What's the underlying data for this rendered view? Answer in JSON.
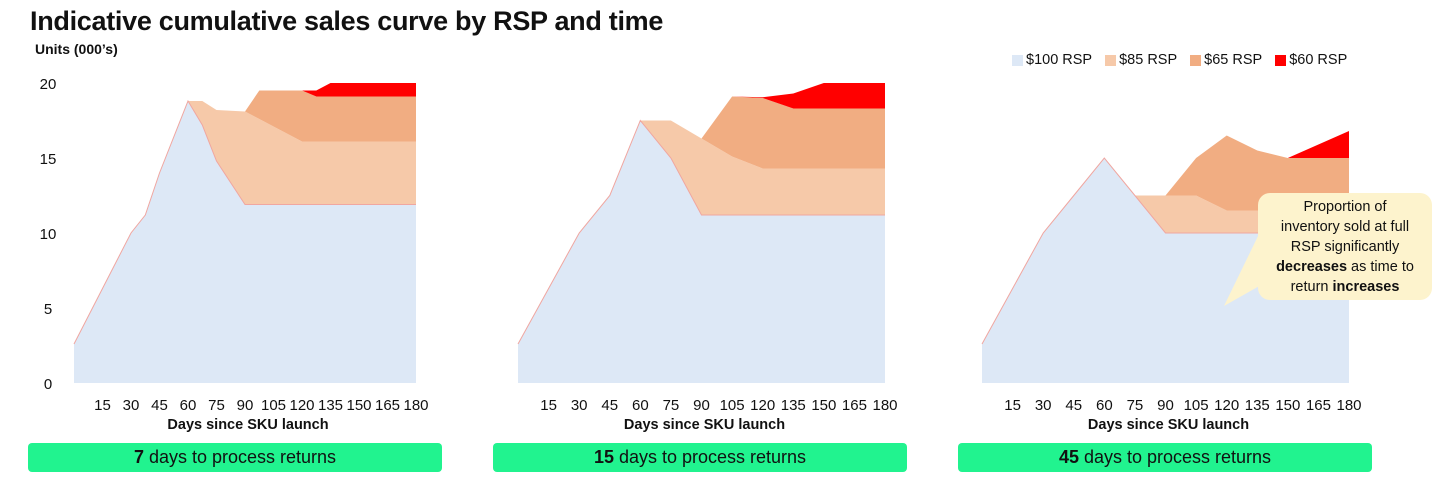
{
  "title": "Indicative cumulative sales curve by RSP and time",
  "y_axis_label": "Units (000’s)",
  "legend": [
    {
      "label": "$100 RSP",
      "color": "#dde8f6"
    },
    {
      "label": "$85 RSP",
      "color": "#f6c9a9"
    },
    {
      "label": "$65 RSP",
      "color": "#f1ad82"
    },
    {
      "label": "$60 RSP",
      "color": "#ff0000"
    }
  ],
  "panels": [
    {
      "days_value": "7",
      "days_text": "days to process returns"
    },
    {
      "days_value": "15",
      "days_text": "days to process returns"
    },
    {
      "days_value": "45",
      "days_text": "days to process returns"
    }
  ],
  "callout": {
    "line1": "Proportion of",
    "line2": "inventory sold at full",
    "line3": "RSP significantly",
    "line4_bold": "decreases",
    "line4_rest": " as time to",
    "line5_pre": "return ",
    "line5_bold": "increases"
  },
  "chart_data": [
    {
      "type": "area",
      "stacked": true,
      "xlabel": "Days since SKU launch",
      "ylabel": "Units (000’s)",
      "x": [
        0,
        15,
        30,
        37.5,
        45,
        60,
        67.5,
        75,
        90,
        97.5,
        105,
        120,
        127.5,
        135,
        150,
        165,
        180
      ],
      "x_ticks": [
        15,
        30,
        45,
        60,
        75,
        90,
        105,
        120,
        135,
        150,
        165,
        180
      ],
      "y_ticks": [
        0,
        5,
        10,
        15,
        20
      ],
      "ylim": [
        0,
        20
      ],
      "series": [
        {
          "name": "$100 RSP",
          "values": [
            2.6,
            6.3,
            10,
            11.2,
            14,
            18.8,
            17.2,
            14.8,
            11.9,
            11.9,
            11.9,
            11.9,
            11.9,
            11.9,
            11.9,
            11.9,
            11.9
          ]
        },
        {
          "name": "$85 RSP",
          "values": [
            0,
            0,
            0,
            0,
            0,
            0,
            1.6,
            3.4,
            6.2,
            5.7,
            5.2,
            4.2,
            4.2,
            4.2,
            4.2,
            4.2,
            4.2
          ]
        },
        {
          "name": "$65 RSP",
          "values": [
            0,
            0,
            0,
            0,
            0,
            0,
            0,
            0,
            0,
            1.9,
            2.4,
            3.4,
            3.0,
            3.0,
            3.0,
            3.0,
            3.0
          ]
        },
        {
          "name": "$60 RSP",
          "values": [
            0,
            0,
            0,
            0,
            0,
            0,
            0,
            0,
            0,
            0,
            0,
            0,
            0.4,
            0.9,
            0.9,
            0.9,
            0.9
          ]
        }
      ]
    },
    {
      "type": "area",
      "stacked": true,
      "xlabel": "Days since SKU launch",
      "ylabel": "Units (000’s)",
      "x": [
        0,
        15,
        30,
        45,
        60,
        75,
        90,
        105,
        120,
        135,
        150,
        165,
        180
      ],
      "x_ticks": [
        15,
        30,
        45,
        60,
        75,
        90,
        105,
        120,
        135,
        150,
        165,
        180
      ],
      "y_ticks": [
        0,
        5,
        10,
        15,
        20
      ],
      "ylim": [
        0,
        20
      ],
      "series": [
        {
          "name": "$100 RSP",
          "values": [
            2.6,
            6.3,
            10,
            12.5,
            17.5,
            15,
            11.2,
            11.2,
            11.2,
            11.2,
            11.2,
            11.2,
            11.2
          ]
        },
        {
          "name": "$85 RSP",
          "values": [
            0,
            0,
            0,
            0,
            0,
            2.5,
            5.1,
            3.9,
            3.1,
            3.1,
            3.1,
            3.1,
            3.1
          ]
        },
        {
          "name": "$65 RSP",
          "values": [
            0,
            0,
            0,
            0,
            0,
            0,
            0,
            4.0,
            4.7,
            4.0,
            4.0,
            4.0,
            4.0
          ]
        },
        {
          "name": "$60 RSP",
          "values": [
            0,
            0,
            0,
            0,
            0,
            0,
            0,
            0,
            0.05,
            1.0,
            1.7,
            1.7,
            1.7
          ]
        }
      ]
    },
    {
      "type": "area",
      "stacked": true,
      "xlabel": "Days since SKU launch",
      "ylabel": "Units (000’s)",
      "x": [
        0,
        15,
        30,
        45,
        60,
        75,
        90,
        105,
        120,
        135,
        150,
        165,
        180
      ],
      "x_ticks": [
        15,
        30,
        45,
        60,
        75,
        90,
        105,
        120,
        135,
        150,
        165,
        180
      ],
      "y_ticks": [
        0,
        5,
        10,
        15,
        20
      ],
      "ylim": [
        0,
        20
      ],
      "series": [
        {
          "name": "$100 RSP",
          "values": [
            2.6,
            6.3,
            10,
            12.5,
            15,
            12.5,
            10,
            10,
            10,
            10,
            10,
            10,
            10
          ]
        },
        {
          "name": "$85 RSP",
          "values": [
            0,
            0,
            0,
            0,
            0,
            0,
            2.5,
            2.5,
            1.5,
            1.5,
            1.5,
            1.5,
            1.5
          ]
        },
        {
          "name": "$65 RSP",
          "values": [
            0,
            0,
            0,
            0,
            0,
            0,
            0,
            2.5,
            5.0,
            4.0,
            3.5,
            3.5,
            3.5
          ]
        },
        {
          "name": "$60 RSP",
          "values": [
            0,
            0,
            0,
            0,
            0,
            0,
            0,
            0,
            0,
            0,
            0,
            0.9,
            1.8
          ]
        }
      ]
    }
  ]
}
